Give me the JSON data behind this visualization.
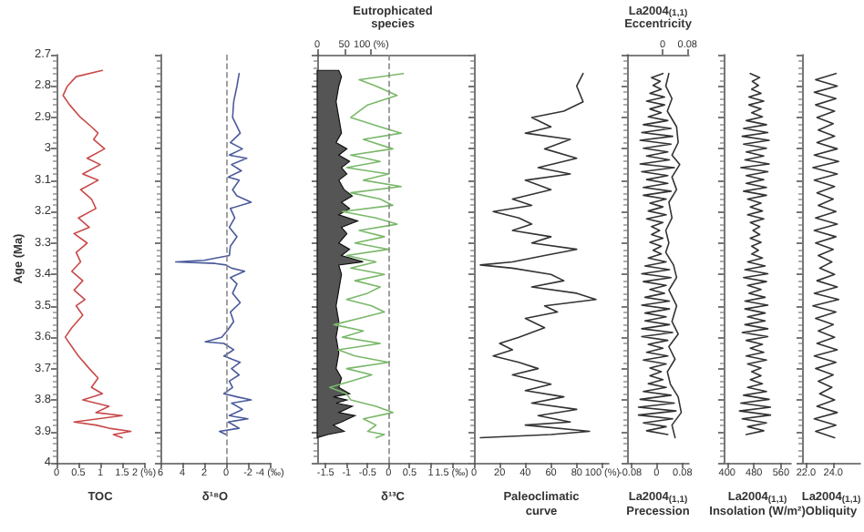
{
  "chart_data": [
    {
      "type": "line",
      "xlabel": "TOC",
      "ylabel": "Age (Ma)",
      "xlim": [
        0,
        2
      ],
      "xticks": [
        0,
        0.5,
        1,
        1.5,
        {
          "value": 2,
          "label": "2 (%)"
        }
      ],
      "ylim": [
        4,
        2.7
      ],
      "yticks": [
        2.7,
        2.8,
        2.9,
        3,
        3.1,
        3.2,
        3.3,
        3.4,
        3.5,
        3.6,
        3.7,
        3.8,
        3.9,
        4
      ],
      "series": [
        {
          "color": "#c84a4a",
          "x": [
            1.05,
            0.45,
            0.25,
            0.15,
            0.3,
            0.55,
            0.8,
            0.95,
            0.85,
            1.1,
            0.7,
            1.0,
            0.6,
            0.95,
            0.55,
            0.8,
            0.9,
            0.5,
            0.75,
            0.4,
            0.7,
            0.45,
            0.55,
            0.35,
            0.6,
            0.4,
            0.65,
            0.45,
            0.6,
            0.35,
            0.2,
            0.35,
            0.5,
            0.75,
            0.95,
            0.8,
            1.05,
            0.6,
            1.2,
            0.9,
            1.5,
            0.4,
            0.9,
            1.2,
            1.7,
            1.3,
            1.5
          ],
          "values": [
            2.75,
            2.77,
            2.8,
            2.83,
            2.86,
            2.9,
            2.93,
            2.95,
            2.97,
            3.0,
            3.03,
            3.05,
            3.08,
            3.1,
            3.13,
            3.16,
            3.19,
            3.22,
            3.25,
            3.27,
            3.3,
            3.33,
            3.36,
            3.39,
            3.42,
            3.45,
            3.48,
            3.5,
            3.53,
            3.57,
            3.6,
            3.63,
            3.66,
            3.7,
            3.73,
            3.76,
            3.78,
            3.8,
            3.82,
            3.84,
            3.85,
            3.87,
            3.88,
            3.89,
            3.9,
            3.91,
            3.92
          ]
        }
      ]
    },
    {
      "type": "line",
      "xlabel": "δ¹⁸O",
      "xlim": [
        6,
        -4
      ],
      "xticks": [
        6,
        4,
        2,
        0,
        -2,
        {
          "value": -4,
          "label": "-4 (‰)"
        }
      ],
      "ylim": [
        4,
        2.7
      ],
      "yticks": [
        2.7,
        2.8,
        2.9,
        3,
        3.1,
        3.2,
        3.3,
        3.4,
        3.5,
        3.6,
        3.7,
        3.8,
        3.9,
        4
      ],
      "tick_labels": "x",
      "ref_lines": [
        {
          "axis": "x",
          "value": 0,
          "line_style": "dashed"
        }
      ],
      "series": [
        {
          "color": "#4a5a9a",
          "x": [
            -1.2,
            -1.0,
            -0.7,
            -0.6,
            -1.3,
            -0.4,
            -1.5,
            -0.3,
            -1.9,
            -0.5,
            -1.4,
            -0.2,
            -1.2,
            -0.6,
            -1.0,
            -2.3,
            -0.4,
            -0.8,
            -0.3,
            -1.0,
            -0.4,
            -0.3,
            2.0,
            4.6,
            1.0,
            0.0,
            -0.5,
            -1.7,
            -0.4,
            -1.0,
            -0.6,
            -1.3,
            -0.4,
            -0.7,
            -0.1,
            0.4,
            1.9,
            0.2,
            -0.7,
            0.2,
            -1.3,
            -0.5,
            -1.2,
            -0.3,
            -0.6,
            0.2,
            -1.0,
            -2.3,
            -0.5,
            -1.5,
            -0.3,
            -2.0,
            -0.2,
            -1.2,
            0.6,
            0.0
          ],
          "values": [
            2.76,
            2.8,
            2.85,
            2.9,
            2.95,
            2.98,
            3.0,
            3.02,
            3.03,
            3.05,
            3.07,
            3.09,
            3.1,
            3.13,
            3.15,
            3.17,
            3.19,
            3.22,
            3.25,
            3.28,
            3.31,
            3.34,
            3.355,
            3.36,
            3.365,
            3.37,
            3.38,
            3.39,
            3.41,
            3.43,
            3.46,
            3.49,
            3.52,
            3.55,
            3.58,
            3.6,
            3.615,
            3.62,
            3.64,
            3.66,
            3.68,
            3.7,
            3.72,
            3.74,
            3.76,
            3.78,
            3.79,
            3.8,
            3.81,
            3.83,
            3.85,
            3.86,
            3.87,
            3.89,
            3.9,
            3.91
          ]
        }
      ]
    },
    {
      "type": "line",
      "xlabel": "δ¹³C",
      "x2label": "Eutrophicated species",
      "xlim": [
        -1.7,
        1.9
      ],
      "xticks": [
        -1.5,
        -1,
        -0.5,
        0,
        0.5,
        1,
        {
          "value": 1.5,
          "label": "1.5 (‰)"
        }
      ],
      "x2lim": [
        0,
        280
      ],
      "x2ticks": [
        0,
        50,
        {
          "value": 100,
          "label": "100 (%)"
        }
      ],
      "ylim": [
        4,
        2.7
      ],
      "yticks": [
        2.7,
        2.8,
        2.9,
        3,
        3.1,
        3.2,
        3.3,
        3.4,
        3.5,
        3.6,
        3.7,
        3.8,
        3.9,
        4
      ],
      "tick_labels": "x",
      "ref_lines": [
        {
          "axis": "x",
          "value": 0,
          "line_style": "dashed"
        }
      ],
      "series": [
        {
          "type": "area",
          "axis": "x2",
          "color": "#555555",
          "x": [
            40,
            45,
            40,
            35,
            40,
            45,
            35,
            55,
            40,
            60,
            45,
            55,
            40,
            50,
            65,
            45,
            60,
            40,
            75,
            45,
            55,
            40,
            60,
            45,
            85,
            40,
            45,
            40,
            35,
            40,
            35,
            40,
            35,
            45,
            40,
            60,
            30,
            55,
            35,
            65,
            40,
            70,
            45,
            30,
            50,
            20,
            0
          ],
          "values": [
            2.75,
            2.77,
            2.8,
            2.85,
            2.9,
            2.95,
            2.98,
            3.0,
            3.02,
            3.04,
            3.06,
            3.08,
            3.1,
            3.13,
            3.15,
            3.17,
            3.19,
            3.21,
            3.23,
            3.25,
            3.27,
            3.3,
            3.32,
            3.34,
            3.36,
            3.37,
            3.4,
            3.45,
            3.5,
            3.55,
            3.6,
            3.65,
            3.7,
            3.73,
            3.76,
            3.78,
            3.79,
            3.8,
            3.81,
            3.82,
            3.84,
            3.85,
            3.87,
            3.88,
            3.9,
            3.91,
            3.92
          ]
        },
        {
          "color": "#7ab86a",
          "x": [
            0.35,
            -0.7,
            -0.3,
            0.2,
            -0.5,
            -0.9,
            -0.2,
            0.3,
            -0.6,
            0.1,
            -0.9,
            -0.2,
            -1.0,
            0.0,
            -0.6,
            0.3,
            -0.9,
            -0.2,
            0.1,
            -1.1,
            -0.3,
            0.2,
            -0.7,
            -0.1,
            -0.8,
            0.0,
            -1.0,
            -0.3,
            -0.9,
            -0.1,
            -0.8,
            -0.2,
            -0.5,
            -1.0,
            -0.4,
            -0.1,
            -0.7,
            -1.3,
            -0.6,
            -1.1,
            -0.2,
            -1.2,
            -0.8,
            0.0,
            -1.0,
            -0.4,
            -0.9,
            -1.4,
            -1.0,
            -0.9,
            -0.3,
            0.1,
            -0.6,
            -0.3,
            -0.5,
            -0.1,
            -0.3
          ],
          "values": [
            2.76,
            2.78,
            2.8,
            2.83,
            2.86,
            2.9,
            2.93,
            2.95,
            2.97,
            3.0,
            3.02,
            3.04,
            3.06,
            3.08,
            3.1,
            3.12,
            3.14,
            3.16,
            3.18,
            3.2,
            3.22,
            3.24,
            3.26,
            3.28,
            3.3,
            3.32,
            3.34,
            3.36,
            3.38,
            3.4,
            3.42,
            3.44,
            3.46,
            3.48,
            3.5,
            3.52,
            3.54,
            3.56,
            3.58,
            3.6,
            3.62,
            3.64,
            3.66,
            3.68,
            3.7,
            3.72,
            3.74,
            3.76,
            3.78,
            3.8,
            3.82,
            3.84,
            3.86,
            3.88,
            3.9,
            3.91,
            3.92
          ]
        }
      ]
    },
    {
      "type": "line",
      "xlabel": "Paleoclimatic curve",
      "xlim": [
        0,
        105
      ],
      "xticks": [
        0,
        20,
        40,
        60,
        80,
        {
          "value": 100,
          "label": "100 (%)"
        }
      ],
      "ylim": [
        4,
        2.7
      ],
      "yticks": [
        2.7,
        2.8,
        2.9,
        3,
        3.1,
        3.2,
        3.3,
        3.4,
        3.5,
        3.6,
        3.7,
        3.8,
        3.9,
        4
      ],
      "tick_labels": "x",
      "series": [
        {
          "color": "#333333",
          "x": [
            85,
            80,
            85,
            70,
            45,
            60,
            40,
            75,
            55,
            80,
            50,
            75,
            40,
            60,
            30,
            45,
            15,
            35,
            45,
            30,
            60,
            45,
            80,
            55,
            30,
            5,
            30,
            60,
            70,
            45,
            80,
            95,
            55,
            65,
            40,
            55,
            35,
            20,
            30,
            15,
            35,
            50,
            30,
            60,
            40,
            70,
            45,
            80,
            50,
            75,
            40,
            90,
            60,
            5
          ],
          "values": [
            2.76,
            2.8,
            2.85,
            2.88,
            2.9,
            2.93,
            2.95,
            2.97,
            3.0,
            3.03,
            3.06,
            3.08,
            3.1,
            3.13,
            3.16,
            3.18,
            3.2,
            3.22,
            3.24,
            3.26,
            3.28,
            3.3,
            3.32,
            3.34,
            3.36,
            3.37,
            3.38,
            3.4,
            3.42,
            3.44,
            3.46,
            3.48,
            3.5,
            3.52,
            3.54,
            3.57,
            3.6,
            3.62,
            3.64,
            3.66,
            3.68,
            3.7,
            3.72,
            3.75,
            3.77,
            3.79,
            3.81,
            3.83,
            3.85,
            3.87,
            3.88,
            3.9,
            3.91,
            3.92
          ]
        }
      ]
    },
    {
      "type": "line",
      "xlabel": "La2004$_{(1,1)}$ Precession",
      "x2label": "La2004$_{(1,1)}$ Eccentricity",
      "xlim": [
        -0.09,
        0.1
      ],
      "xticks": [
        -0.08,
        0,
        0.08
      ],
      "x2lim": [
        -0.115,
        0.085
      ],
      "x2ticks": [
        0,
        0.08
      ],
      "ylim": [
        4,
        2.7
      ],
      "yticks": [
        2.7,
        2.8,
        2.9,
        3,
        3.1,
        3.2,
        3.3,
        3.4,
        3.5,
        3.6,
        3.7,
        3.8,
        3.9,
        4
      ],
      "tick_labels": "x",
      "series": [
        {
          "color": "#333333",
          "x": [
            0.02,
            -0.015,
            0.012,
            -0.01,
            0.015,
            -0.02,
            0.025,
            -0.03,
            0.025,
            -0.02,
            0.015,
            -0.025,
            0.035,
            -0.04,
            0.045,
            -0.045,
            0.05,
            -0.05,
            0.045,
            -0.04,
            0.035,
            -0.03,
            0.04,
            -0.05,
            0.055,
            -0.045,
            0.035,
            -0.03,
            0.035,
            -0.04,
            0.045,
            -0.04,
            0.03,
            -0.02,
            0.02,
            -0.025,
            0.03,
            -0.03,
            0.02,
            -0.015,
            0.01,
            -0.015,
            0.02,
            -0.02,
            0.015,
            -0.01,
            0.015,
            -0.025,
            0.03,
            -0.035,
            0.04,
            -0.045,
            0.045,
            -0.04,
            0.03,
            -0.02,
            0.025,
            -0.035,
            0.04,
            -0.045,
            0.04,
            -0.035,
            0.03,
            -0.035,
            0.04,
            -0.045,
            0.05,
            -0.045,
            0.035,
            -0.025,
            0.02,
            -0.03,
            0.035,
            -0.04,
            0.03,
            -0.02,
            0.015,
            -0.02,
            0.02,
            -0.025,
            0.03,
            -0.04,
            0.045,
            -0.05,
            0.055,
            -0.055,
            0.06,
            -0.055,
            0.05,
            -0.04,
            0.03,
            -0.03,
            0.035
          ],
          "values": [
            2.76,
            2.773,
            2.785,
            2.798,
            2.81,
            2.823,
            2.835,
            2.848,
            2.86,
            2.873,
            2.885,
            2.898,
            2.91,
            2.923,
            2.935,
            2.948,
            2.96,
            2.973,
            2.985,
            2.998,
            3.01,
            3.023,
            3.035,
            3.048,
            3.06,
            3.073,
            3.085,
            3.098,
            3.11,
            3.123,
            3.135,
            3.148,
            3.16,
            3.173,
            3.185,
            3.198,
            3.21,
            3.223,
            3.235,
            3.248,
            3.26,
            3.273,
            3.285,
            3.298,
            3.31,
            3.323,
            3.335,
            3.348,
            3.36,
            3.373,
            3.385,
            3.398,
            3.41,
            3.423,
            3.435,
            3.448,
            3.46,
            3.473,
            3.485,
            3.498,
            3.51,
            3.523,
            3.535,
            3.548,
            3.56,
            3.573,
            3.585,
            3.598,
            3.61,
            3.623,
            3.635,
            3.648,
            3.66,
            3.673,
            3.685,
            3.698,
            3.71,
            3.723,
            3.735,
            3.748,
            3.76,
            3.773,
            3.785,
            3.798,
            3.81,
            3.823,
            3.835,
            3.848,
            3.86,
            3.873,
            3.885,
            3.898,
            3.91
          ]
        },
        {
          "color": "#333333",
          "axis": "x2",
          "x": [
            0.02,
            0.01,
            0.03,
            0.015,
            0.045,
            0.05,
            0.03,
            0.055,
            0.03,
            0.045,
            0.02,
            0.03,
            0.01,
            0.02,
            0.01,
            0.035,
            0.045,
            0.02,
            0.045,
            0.03,
            0.05,
            0.02,
            0.04,
            0.015,
            0.025,
            0.05,
            0.06,
            0.03,
            0.04
          ],
          "values": [
            2.76,
            2.8,
            2.84,
            2.88,
            2.93,
            2.98,
            3.02,
            3.05,
            3.09,
            3.13,
            3.17,
            3.22,
            3.26,
            3.3,
            3.33,
            3.37,
            3.41,
            3.45,
            3.5,
            3.55,
            3.59,
            3.63,
            3.67,
            3.71,
            3.75,
            3.79,
            3.84,
            3.88,
            3.92
          ]
        }
      ]
    },
    {
      "type": "line",
      "xlabel": "La2004$_{(1,1)}$ Insolation (W/m²)",
      "xlim": [
        390,
        590
      ],
      "xticks": [
        400,
        480,
        560
      ],
      "ylim": [
        4,
        2.7
      ],
      "yticks": [
        2.7,
        2.8,
        2.9,
        3,
        3.1,
        3.2,
        3.3,
        3.4,
        3.5,
        3.6,
        3.7,
        3.8,
        3.9,
        4
      ],
      "tick_labels": "x",
      "series": [
        {
          "color": "#333333",
          "x": [
            469,
            497,
            475,
            493,
            473,
            501,
            465,
            509,
            465,
            501,
            473,
            505,
            457,
            517,
            449,
            521,
            445,
            525,
            449,
            517,
            457,
            509,
            453,
            525,
            441,
            521,
            457,
            509,
            457,
            517,
            449,
            517,
            461,
            501,
            469,
            505,
            461,
            509,
            469,
            497,
            477,
            497,
            469,
            501,
            473,
            493,
            473,
            505,
            461,
            513,
            453,
            521,
            449,
            517,
            461,
            501,
            465,
            513,
            453,
            521,
            453,
            513,
            461,
            513,
            453,
            521,
            445,
            521,
            457,
            505,
            469,
            509,
            457,
            517,
            461,
            501,
            473,
            501,
            469,
            505,
            461,
            517,
            449,
            525,
            441,
            529,
            437,
            529,
            445,
            517,
            461,
            509,
            457
          ],
          "values": [
            2.76,
            2.773,
            2.785,
            2.798,
            2.81,
            2.823,
            2.835,
            2.848,
            2.86,
            2.873,
            2.885,
            2.898,
            2.91,
            2.923,
            2.935,
            2.948,
            2.96,
            2.973,
            2.985,
            2.998,
            3.01,
            3.023,
            3.035,
            3.048,
            3.06,
            3.073,
            3.085,
            3.098,
            3.11,
            3.123,
            3.135,
            3.148,
            3.16,
            3.173,
            3.185,
            3.198,
            3.21,
            3.223,
            3.235,
            3.248,
            3.26,
            3.273,
            3.285,
            3.298,
            3.31,
            3.323,
            3.335,
            3.348,
            3.36,
            3.373,
            3.385,
            3.398,
            3.41,
            3.423,
            3.435,
            3.448,
            3.46,
            3.473,
            3.485,
            3.498,
            3.51,
            3.523,
            3.535,
            3.548,
            3.56,
            3.573,
            3.585,
            3.598,
            3.61,
            3.623,
            3.635,
            3.648,
            3.66,
            3.673,
            3.685,
            3.698,
            3.71,
            3.723,
            3.735,
            3.748,
            3.76,
            3.773,
            3.785,
            3.798,
            3.81,
            3.823,
            3.835,
            3.848,
            3.86,
            3.873,
            3.885,
            3.898,
            3.91
          ]
        }
      ]
    },
    {
      "type": "line",
      "xlabel": "La2004$_{(1,1)}$ Obliquity",
      "xlim": [
        21.7,
        26
      ],
      "xticks": [
        {
          "value": 22,
          "label": "22.0"
        },
        {
          "value": 24,
          "label": "24.0"
        }
      ],
      "ylim": [
        4,
        2.7
      ],
      "yticks": [
        2.7,
        2.8,
        2.9,
        3,
        3.1,
        3.2,
        3.3,
        3.4,
        3.5,
        3.6,
        3.7,
        3.8,
        3.9,
        4
      ],
      "tick_labels": "x",
      "series": [
        {
          "color": "#333333",
          "x": [
            24.2,
            22.7,
            24.3,
            22.6,
            24.2,
            22.7,
            24.1,
            22.8,
            24.0,
            22.9,
            24.1,
            22.8,
            24.3,
            22.6,
            24.4,
            22.5,
            24.3,
            22.6,
            24.1,
            22.8,
            24.0,
            22.9,
            24.2,
            22.7,
            24.3,
            22.6,
            24.2,
            22.7,
            24.0,
            22.9,
            23.9,
            23.0,
            24.1,
            22.8,
            24.3,
            22.6,
            24.4,
            22.5,
            24.2,
            22.7,
            24.0,
            22.9,
            24.1,
            22.8,
            24.3,
            22.6,
            24.2,
            22.7,
            24.0,
            22.9,
            23.9,
            23.0,
            24.1,
            22.8,
            24.3,
            22.6,
            24.2,
            22.7,
            24.1
          ],
          "values": [
            2.76,
            2.78,
            2.8,
            2.82,
            2.84,
            2.86,
            2.88,
            2.9,
            2.92,
            2.94,
            2.96,
            2.98,
            3,
            3.02,
            3.04,
            3.06,
            3.08,
            3.1,
            3.12,
            3.14,
            3.16,
            3.18,
            3.2,
            3.22,
            3.24,
            3.26,
            3.28,
            3.3,
            3.32,
            3.34,
            3.36,
            3.38,
            3.4,
            3.42,
            3.44,
            3.46,
            3.48,
            3.5,
            3.52,
            3.54,
            3.56,
            3.58,
            3.6,
            3.62,
            3.64,
            3.66,
            3.68,
            3.7,
            3.72,
            3.74,
            3.76,
            3.78,
            3.8,
            3.82,
            3.84,
            3.86,
            3.88,
            3.9,
            3.92
          ]
        }
      ]
    }
  ]
}
